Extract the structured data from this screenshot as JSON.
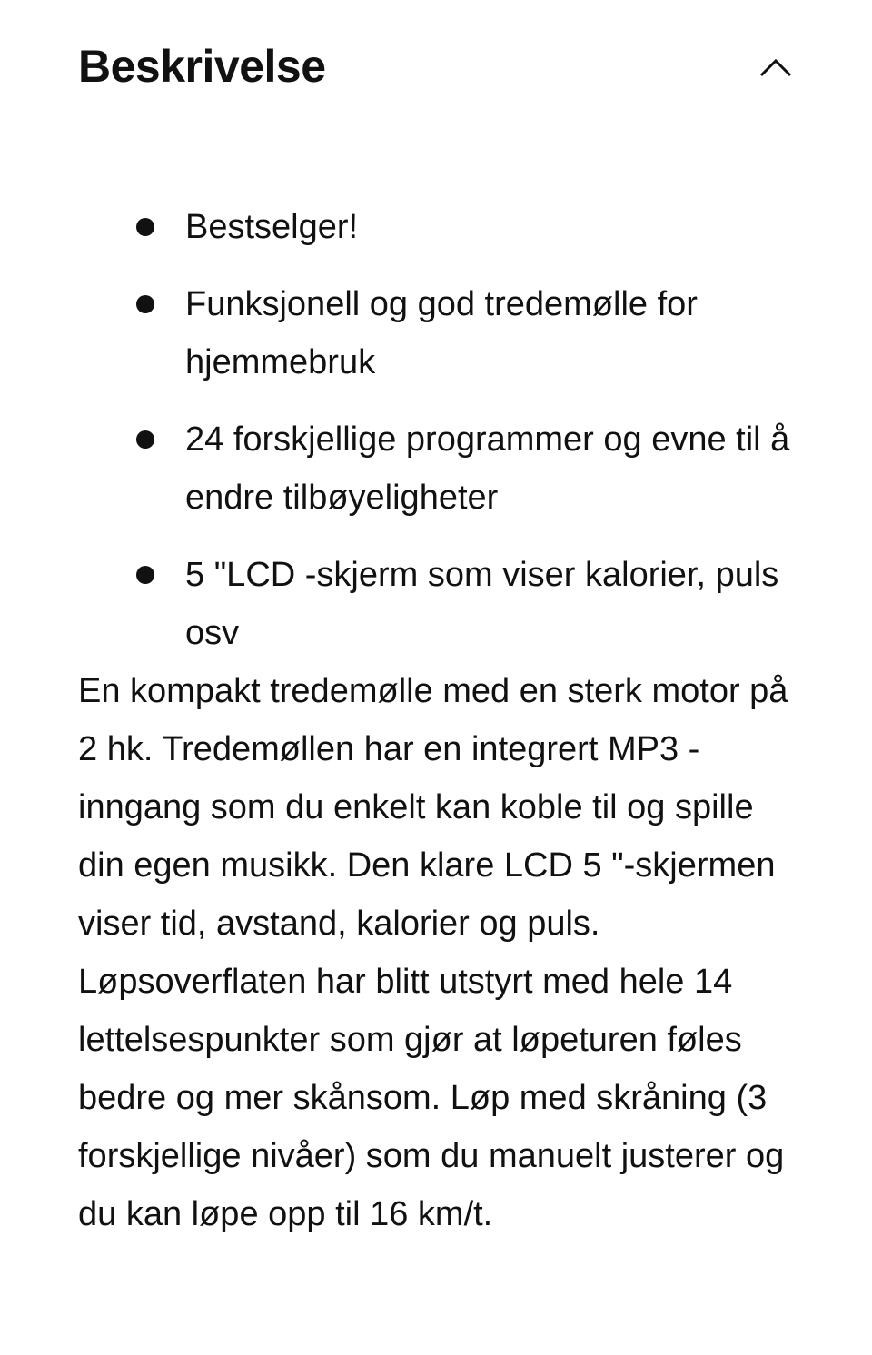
{
  "section": {
    "title": "Beskrivelse",
    "toggle_icon": "chevron-up-icon"
  },
  "bullets": [
    "Bestselger!",
    "Funksjonell og god tredemølle for hjemmebruk",
    "24 forskjellige programmer og evne til å endre tilbøyeligheter",
    "5 \"LCD -skjerm som viser kalorier, puls osv"
  ],
  "description": "En kompakt tredemølle med en sterk motor på 2 hk. Tredemøllen har en integrert MP3 -inngang som du enkelt kan koble til og spille din egen musikk. Den klare LCD 5 \"-skjermen viser tid, avstand, kalorier og puls. Løpsoverflaten har blitt utstyrt med hele 14 lettelsespunkter som gjør at løpeturen føles bedre og mer skånsom. Løp med skråning (3 forskjellige nivåer) som du manuelt justerer og du kan løpe opp til 16 km/t."
}
